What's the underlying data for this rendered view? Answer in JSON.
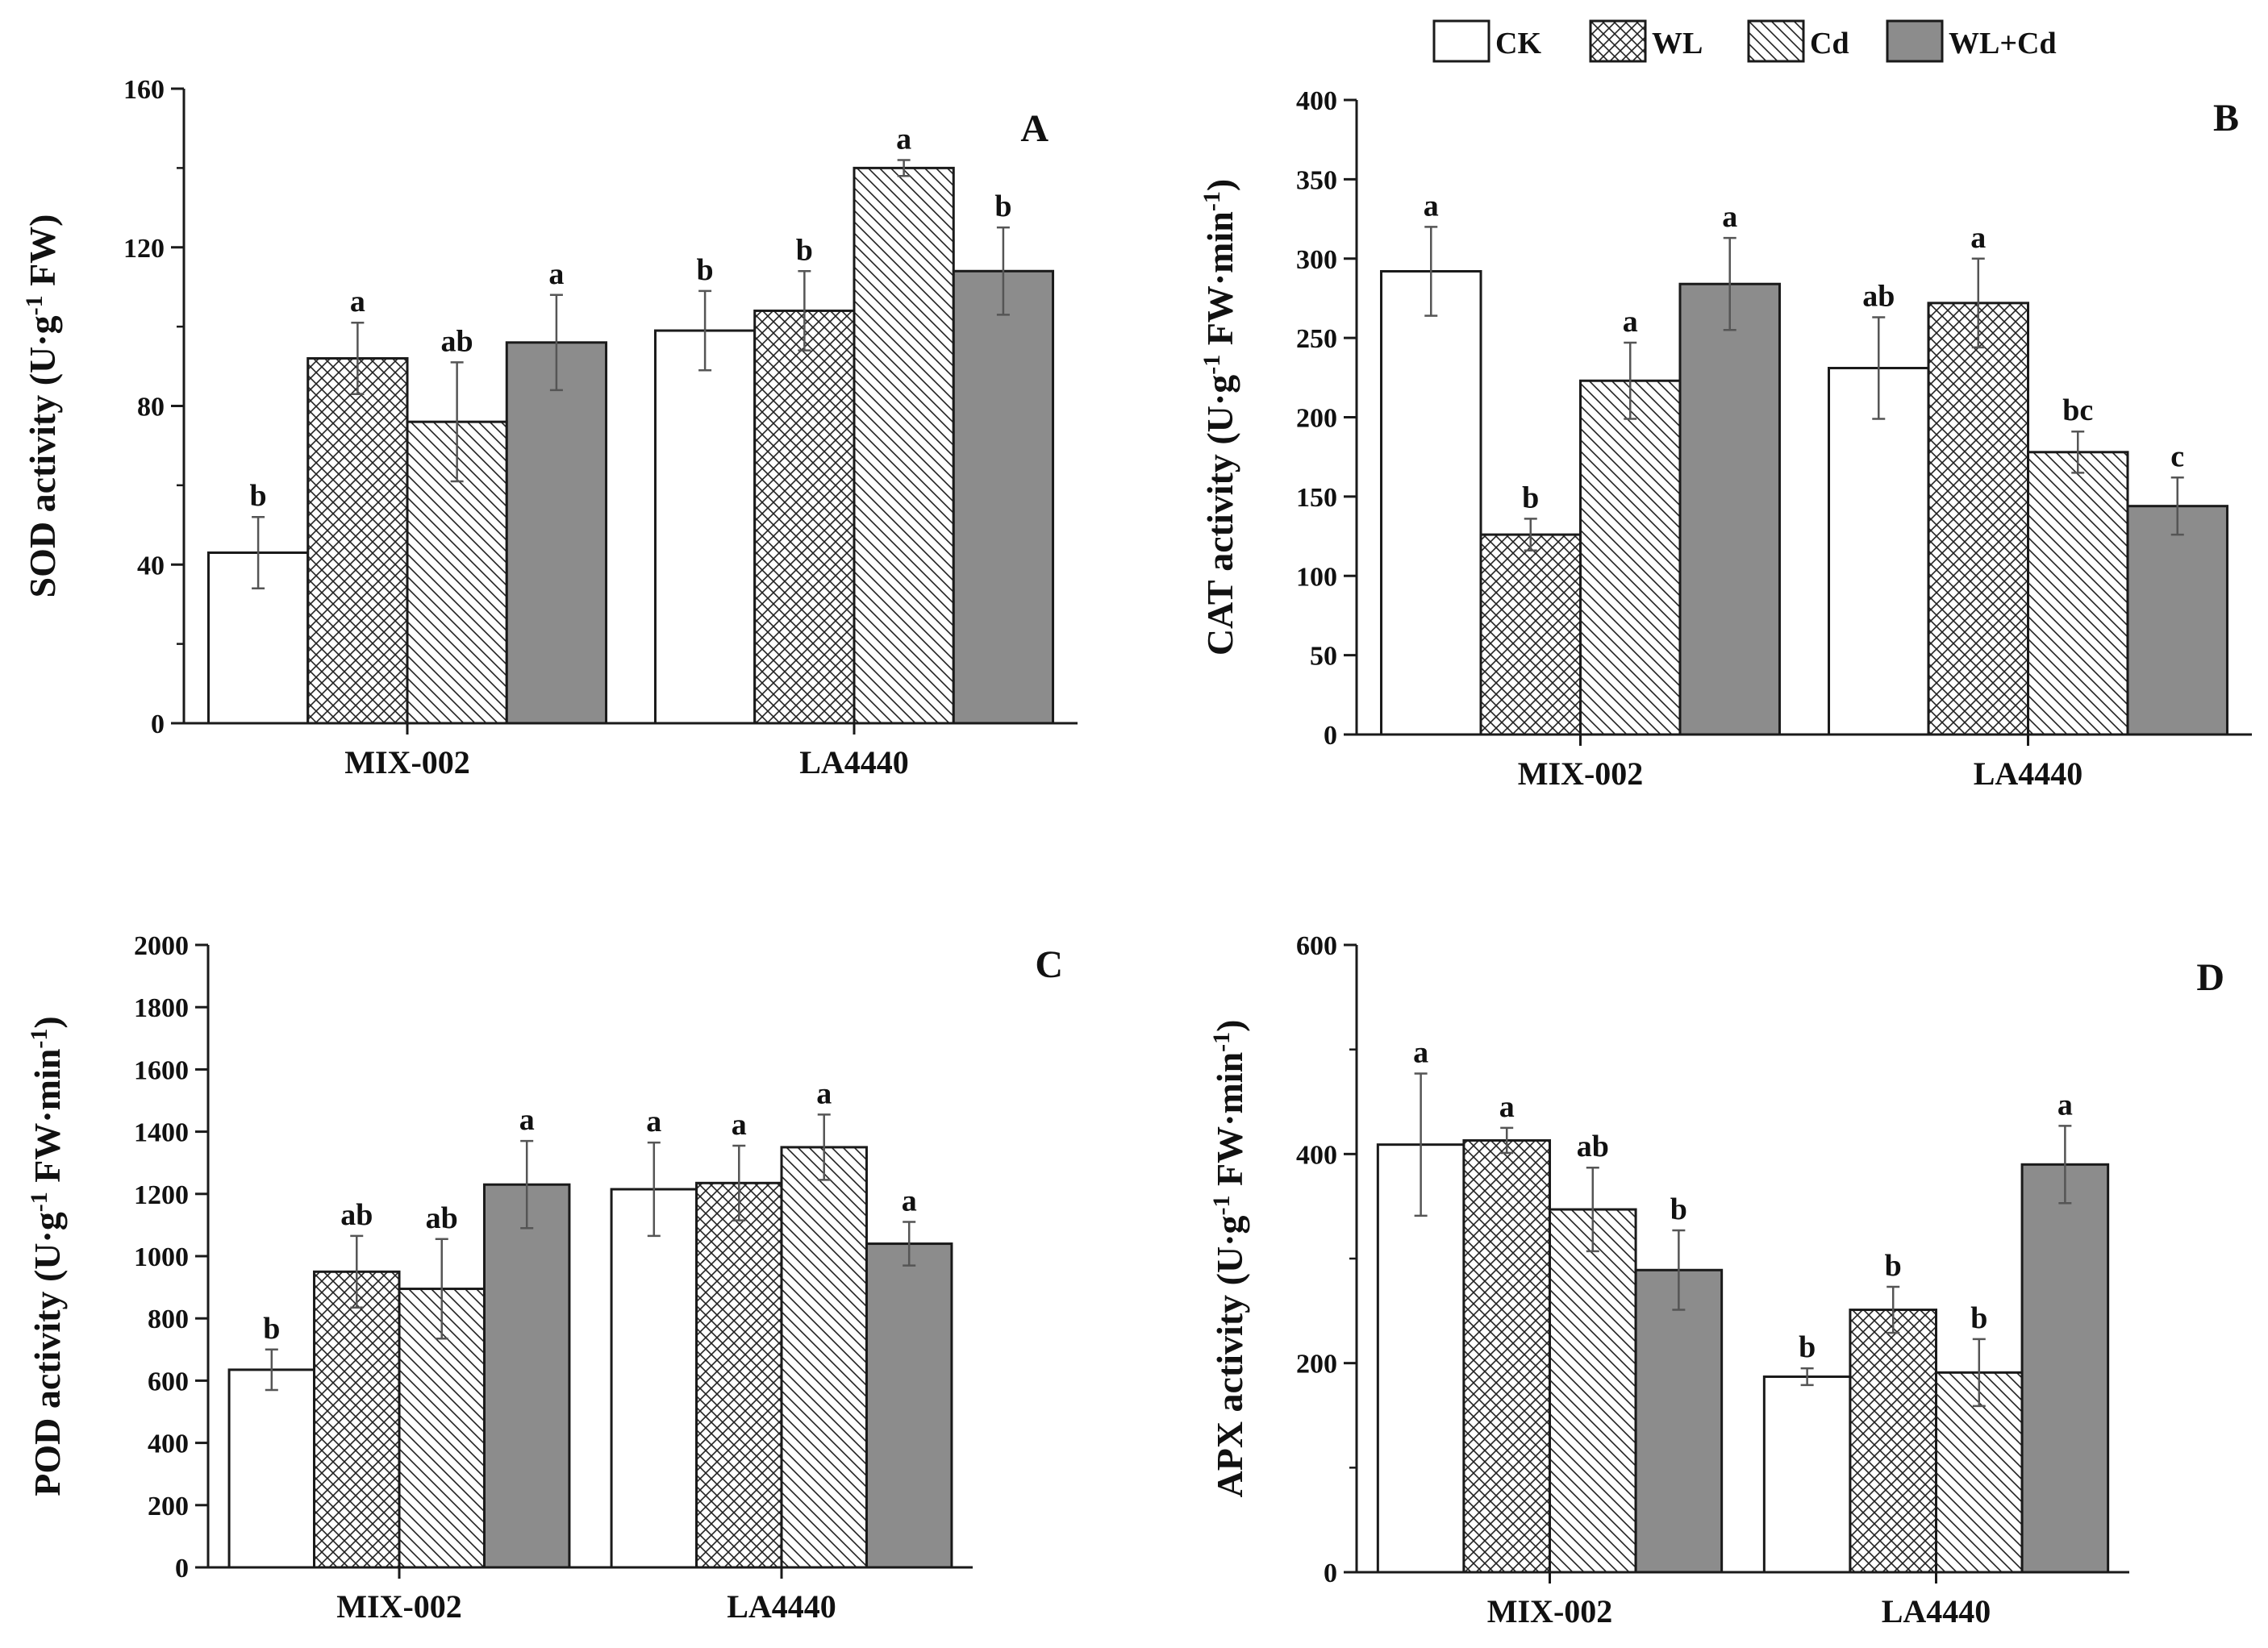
{
  "legend": [
    {
      "name": "CK",
      "pattern": "solid-white"
    },
    {
      "name": "WL",
      "pattern": "crosshatch"
    },
    {
      "name": "Cd",
      "pattern": "diagonal"
    },
    {
      "name": "WL+Cd",
      "pattern": "solid-gray"
    }
  ],
  "colors": {
    "gray_fill": "#8c8c8c",
    "stroke": "#1a1a1a",
    "background": "#ffffff"
  },
  "chart_data": [
    {
      "type": "bar",
      "panel": "A",
      "ylabel": "SOD activity (U·g",
      "ylabel_sup": "-1",
      "ylabel_end": " FW)",
      "ylim": [
        0,
        160
      ],
      "yticks": [
        0,
        40,
        80,
        120,
        160
      ],
      "yticks_minor": [
        20,
        60,
        100,
        140
      ],
      "categories": [
        "MIX-002",
        "LA4440"
      ],
      "series": [
        {
          "name": "CK",
          "values": [
            43,
            99
          ],
          "errors": [
            9,
            10
          ],
          "letters": [
            "b",
            "b"
          ]
        },
        {
          "name": "WL",
          "values": [
            92,
            104
          ],
          "errors": [
            9,
            10
          ],
          "letters": [
            "a",
            "b"
          ]
        },
        {
          "name": "Cd",
          "values": [
            76,
            140
          ],
          "errors": [
            15,
            2
          ],
          "letters": [
            "ab",
            "a"
          ]
        },
        {
          "name": "WL+Cd",
          "values": [
            96,
            114
          ],
          "errors": [
            12,
            11
          ],
          "letters": [
            "a",
            "b"
          ]
        }
      ]
    },
    {
      "type": "bar",
      "panel": "B",
      "ylabel": "CAT activity (U·g",
      "ylabel_sup": "-1",
      "ylabel_end": " FW·min",
      "ylabel_sup2": "-1",
      "ylabel_close": ")",
      "ylim": [
        0,
        400
      ],
      "yticks": [
        0,
        50,
        100,
        150,
        200,
        250,
        300,
        350,
        400
      ],
      "yticks_minor": [],
      "categories": [
        "MIX-002",
        "LA4440"
      ],
      "series": [
        {
          "name": "CK",
          "values": [
            292,
            231
          ],
          "errors": [
            28,
            32
          ],
          "letters": [
            "a",
            "ab"
          ]
        },
        {
          "name": "WL",
          "values": [
            126,
            272
          ],
          "errors": [
            10,
            28
          ],
          "letters": [
            "b",
            "a"
          ]
        },
        {
          "name": "Cd",
          "values": [
            223,
            178
          ],
          "errors": [
            24,
            13
          ],
          "letters": [
            "a",
            "bc"
          ]
        },
        {
          "name": "WL+Cd",
          "values": [
            284,
            144
          ],
          "errors": [
            29,
            18
          ],
          "letters": [
            "a",
            "c"
          ]
        }
      ]
    },
    {
      "type": "bar",
      "panel": "C",
      "ylabel": "POD activity (U·g",
      "ylabel_sup": "-1",
      "ylabel_end": " FW·min",
      "ylabel_sup2": "-1",
      "ylabel_close": ")",
      "ylim": [
        0,
        2000
      ],
      "yticks": [
        0,
        200,
        400,
        600,
        800,
        1000,
        1200,
        1400,
        1600,
        1800,
        2000
      ],
      "yticks_minor": [],
      "categories": [
        "MIX-002",
        "LA4440"
      ],
      "series": [
        {
          "name": "CK",
          "values": [
            635,
            1215
          ],
          "errors": [
            65,
            150
          ],
          "letters": [
            "b",
            "a"
          ]
        },
        {
          "name": "WL",
          "values": [
            950,
            1235
          ],
          "errors": [
            115,
            120
          ],
          "letters": [
            "ab",
            "a"
          ]
        },
        {
          "name": "Cd",
          "values": [
            895,
            1350
          ],
          "errors": [
            160,
            105
          ],
          "letters": [
            "ab",
            "a"
          ]
        },
        {
          "name": "WL+Cd",
          "values": [
            1230,
            1040
          ],
          "errors": [
            140,
            70
          ],
          "letters": [
            "a",
            "a"
          ]
        }
      ]
    },
    {
      "type": "bar",
      "panel": "D",
      "ylabel": "APX activity (U·g",
      "ylabel_sup": "-1",
      "ylabel_end": " FW·min",
      "ylabel_sup2": "-1",
      "ylabel_close": ")",
      "ylim": [
        0,
        600
      ],
      "yticks": [
        0,
        200,
        400,
        600
      ],
      "yticks_minor": [
        100,
        300,
        500
      ],
      "categories": [
        "MIX-002",
        "LA4440"
      ],
      "series": [
        {
          "name": "CK",
          "values": [
            409,
            187
          ],
          "errors": [
            68,
            8
          ],
          "letters": [
            "a",
            "b"
          ]
        },
        {
          "name": "WL",
          "values": [
            413,
            251
          ],
          "errors": [
            12,
            22
          ],
          "letters": [
            "a",
            "b"
          ]
        },
        {
          "name": "Cd",
          "values": [
            347,
            191
          ],
          "errors": [
            40,
            32
          ],
          "letters": [
            "ab",
            "b"
          ]
        },
        {
          "name": "WL+Cd",
          "values": [
            289,
            390
          ],
          "errors": [
            38,
            37
          ],
          "letters": [
            "b",
            "a"
          ]
        }
      ]
    }
  ]
}
